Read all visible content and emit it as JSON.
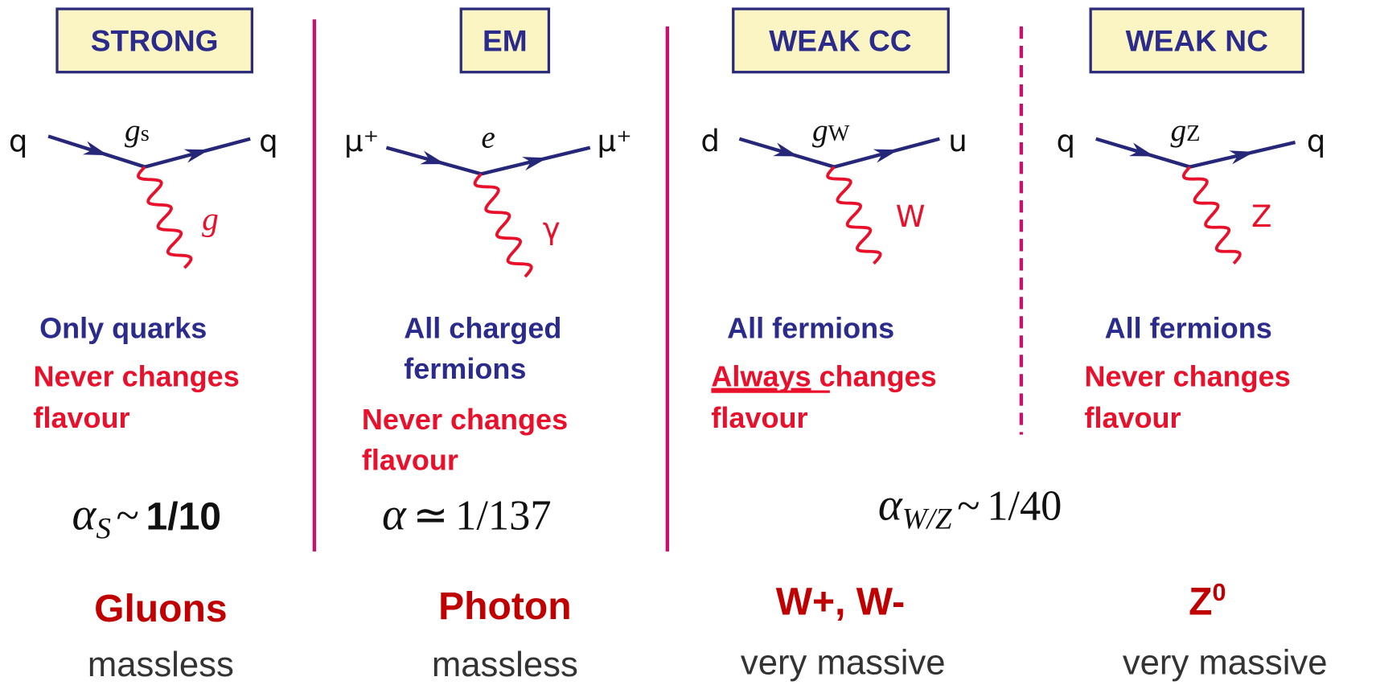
{
  "panels": [
    {
      "title": "STRONG",
      "in": "q",
      "out": "q",
      "coupling": {
        "symbol": "g",
        "sub": "s"
      },
      "boson_symbol": "g",
      "lines": [
        "Only quarks",
        "Never changes",
        "flavour"
      ]
    },
    {
      "title": "EM",
      "in": "μ⁺",
      "out": "μ⁺",
      "coupling": {
        "symbol": "e"
      },
      "boson_symbol": "γ",
      "lines": [
        "All charged",
        "fermions",
        "Never changes",
        "flavour"
      ]
    },
    {
      "title": "WEAK CC",
      "in": "d",
      "out": "u",
      "coupling": {
        "symbol": "g",
        "sub": "W"
      },
      "boson_symbol": "W",
      "lines": [
        "All fermions",
        "Always",
        "changes",
        "flavour"
      ]
    },
    {
      "title": "WEAK NC",
      "in": "q",
      "out": "q",
      "coupling": {
        "symbol": "g",
        "sub": "Z"
      },
      "boson_symbol": "Z",
      "lines": [
        "All fermions",
        "Never changes",
        "flavour"
      ]
    }
  ],
  "alphas": [
    {
      "symbol": "α",
      "sub": "S",
      "relation": "~",
      "value": "1/10"
    },
    {
      "symbol": "α",
      "relation": "≃",
      "value": "1/137"
    },
    {
      "symbol": "α",
      "sub": "W/Z",
      "relation": "~",
      "value": "1/40"
    }
  ],
  "bosons": [
    {
      "name": "Gluons",
      "mass": "massless"
    },
    {
      "name": "Photon",
      "mass": "massless"
    },
    {
      "name": "W+, W-",
      "mass": "very massive"
    },
    {
      "name": "Z",
      "sup": "0",
      "mass": "very massive"
    }
  ]
}
